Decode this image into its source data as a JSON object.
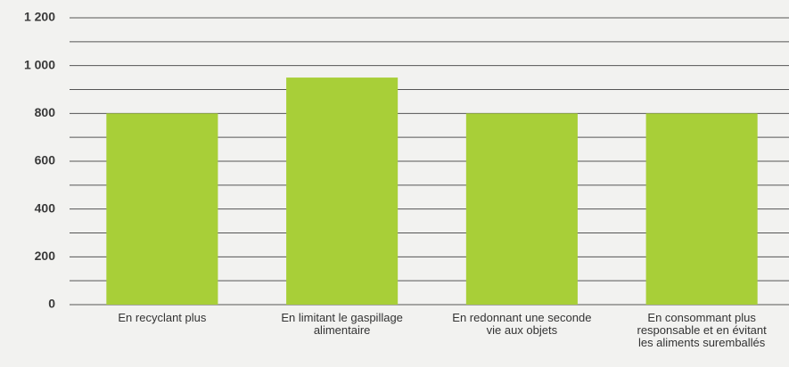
{
  "chart_data": {
    "type": "bar",
    "categories": [
      "En recyclant plus",
      "En limitant le gaspillage alimentaire",
      "En redonnant une seconde vie aux objets",
      "En consommant plus responsable et en évitant les aliments suremballés"
    ],
    "values": [
      800,
      950,
      800,
      800
    ],
    "color": "#a8cf38",
    "ylim": [
      0,
      1200
    ],
    "yticks": [
      0,
      200,
      400,
      600,
      800,
      {
        "value": 1000,
        "label": "1 000"
      },
      {
        "value": 1200,
        "label": "1 200"
      }
    ],
    "minor_yticks": [
      100,
      300,
      500,
      700,
      900,
      1100
    ],
    "grid": true
  }
}
